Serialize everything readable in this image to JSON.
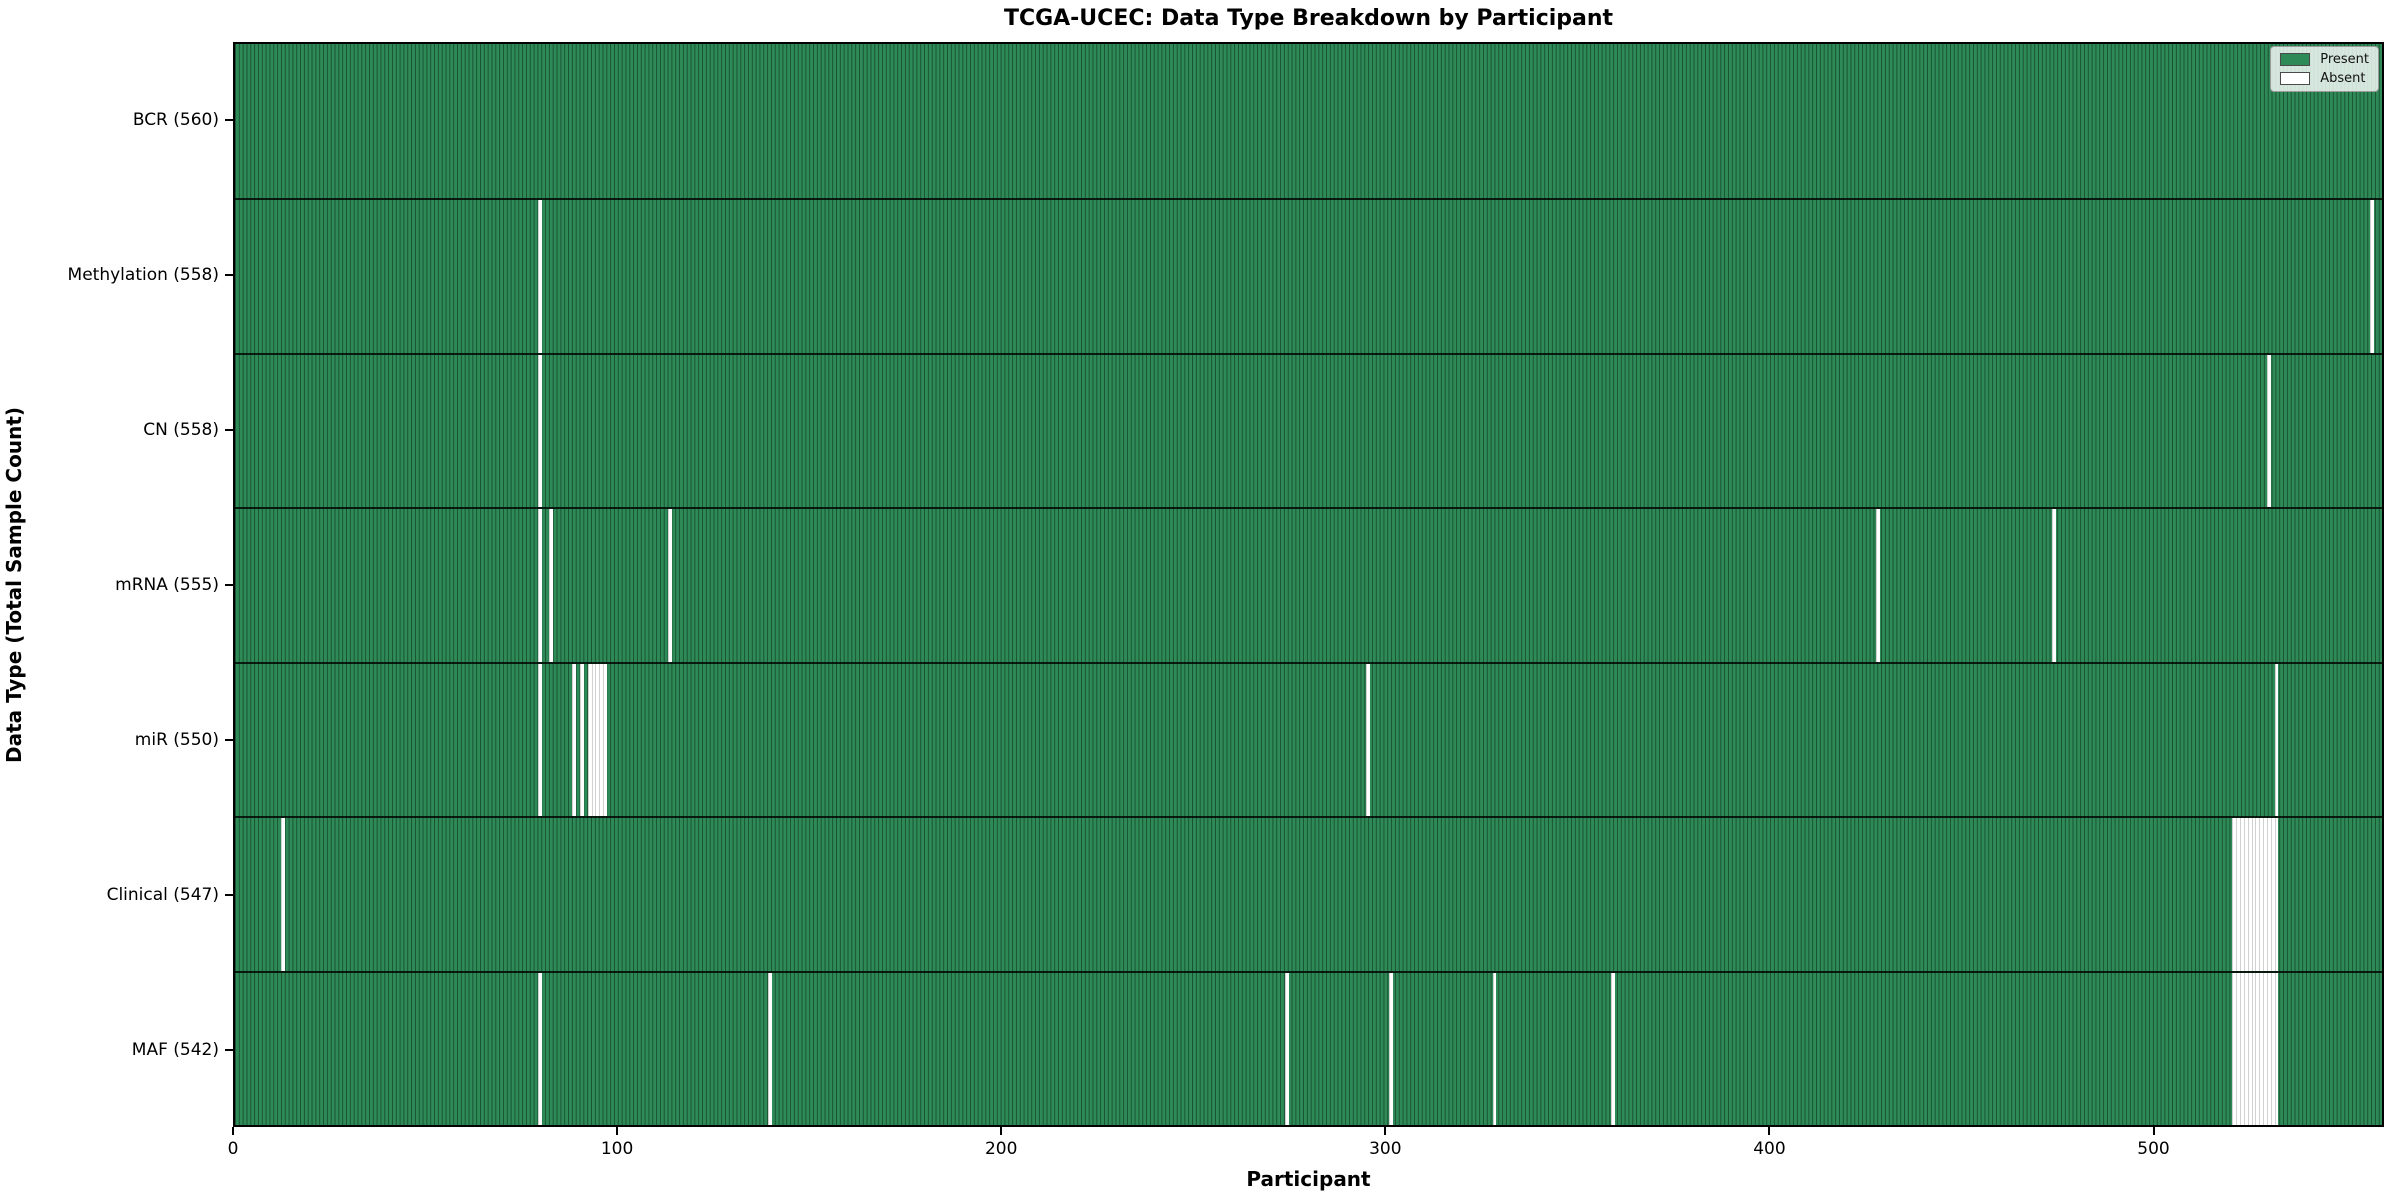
{
  "figure": {
    "background_color": "#ffffff"
  },
  "colors": {
    "present": "#2E8B57",
    "absent": "#ffffff",
    "bar_edge": "rgba(8,34,22,0.55)",
    "plot_border": "#000000",
    "legend_background": "rgba(255,255,255,0.8)",
    "legend_border": "#9a9a9a"
  },
  "chart_data": {
    "type": "heatmap",
    "title": "TCGA-UCEC: Data Type Breakdown by Participant",
    "xlabel": "Participant",
    "ylabel": "Data Type (Total Sample Count)",
    "x_ticks": [
      0,
      100,
      200,
      300,
      400,
      500
    ],
    "xlim": [
      0,
      560
    ],
    "n_participants": 560,
    "grid": false,
    "legend_position": "upper right",
    "legend_items": [
      {
        "label": "Present",
        "color": "#2E8B57"
      },
      {
        "label": "Absent",
        "color": "#ffffff"
      }
    ],
    "rows": [
      {
        "name": "BCR",
        "label": "BCR (560)",
        "present_count": 560,
        "absent_count": 0,
        "absent_participants": []
      },
      {
        "name": "Methylation",
        "label": "Methylation (558)",
        "present_count": 558,
        "absent_count": 2,
        "absent_participants": [
          79,
          557
        ]
      },
      {
        "name": "CN",
        "label": "CN (558)",
        "present_count": 558,
        "absent_count": 2,
        "absent_participants": [
          79,
          530
        ]
      },
      {
        "name": "mRNA",
        "label": "mRNA (555)",
        "present_count": 555,
        "absent_count": 5,
        "absent_participants": [
          79,
          82,
          113,
          428,
          474
        ]
      },
      {
        "name": "miR",
        "label": "miR (550)",
        "present_count": 550,
        "absent_count": 10,
        "absent_participants": [
          79,
          88,
          90,
          92,
          93,
          94,
          95,
          96,
          295,
          532
        ]
      },
      {
        "name": "Clinical",
        "label": "Clinical (547)",
        "present_count": 547,
        "absent_count": 13,
        "absent_participants": [
          12,
          521,
          522,
          523,
          524,
          525,
          526,
          527,
          528,
          529,
          530,
          531,
          532
        ]
      },
      {
        "name": "MAF",
        "label": "MAF (542)",
        "present_count": 542,
        "absent_count": 18,
        "absent_participants": [
          79,
          139,
          274,
          301,
          328,
          359,
          521,
          522,
          523,
          524,
          525,
          526,
          527,
          528,
          529,
          530,
          531,
          532
        ]
      }
    ]
  }
}
